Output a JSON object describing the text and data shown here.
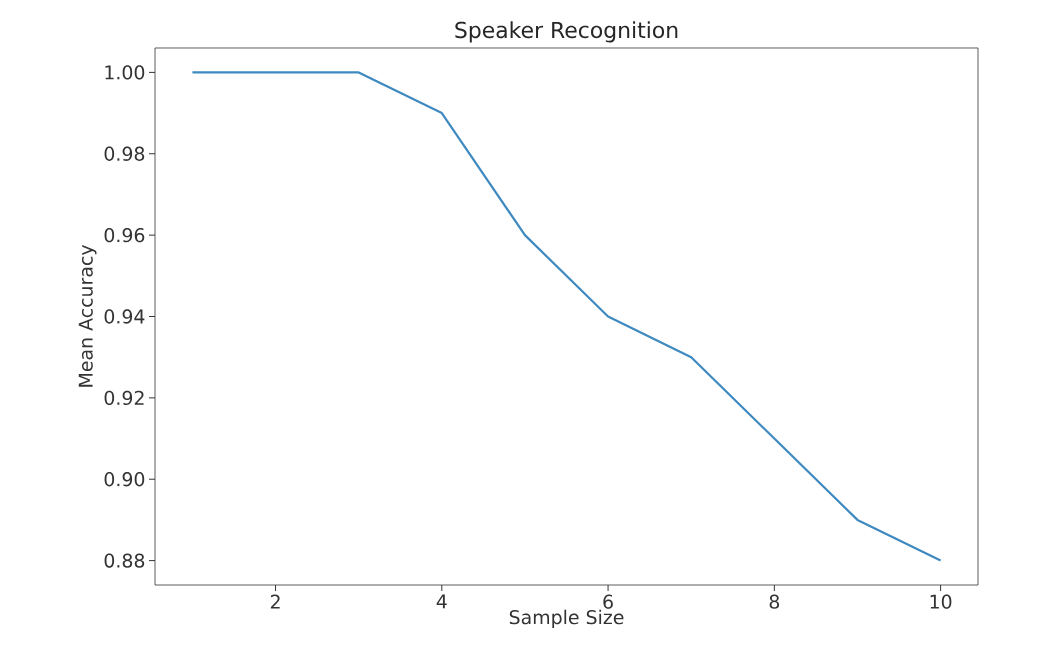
{
  "chart_data": {
    "type": "line",
    "title": "Speaker Recognition",
    "xlabel": "Sample Size",
    "ylabel": "Mean Accuracy",
    "x": [
      1,
      2,
      3,
      4,
      5,
      6,
      7,
      8,
      9,
      10
    ],
    "series": [
      {
        "color": "#3e89c0",
        "values": [
          1.0,
          1.0,
          1.0,
          0.99,
          0.96,
          0.94,
          0.93,
          0.91,
          0.89,
          0.88
        ]
      }
    ],
    "xlim": [
      0.55,
      10.45
    ],
    "ylim": [
      0.874,
      1.006
    ],
    "xticks": [
      2,
      4,
      6,
      8,
      10
    ],
    "yticks": [
      {
        "value": 0.88,
        "label": "0.88"
      },
      {
        "value": 0.9,
        "label": "0.90"
      },
      {
        "value": 0.92,
        "label": "0.92"
      },
      {
        "value": 0.94,
        "label": "0.94"
      },
      {
        "value": 0.96,
        "label": "0.96"
      },
      {
        "value": 0.98,
        "label": "0.98"
      },
      {
        "value": 1.0,
        "label": "1.00"
      }
    ],
    "marker": "none",
    "line_style": "solid"
  }
}
